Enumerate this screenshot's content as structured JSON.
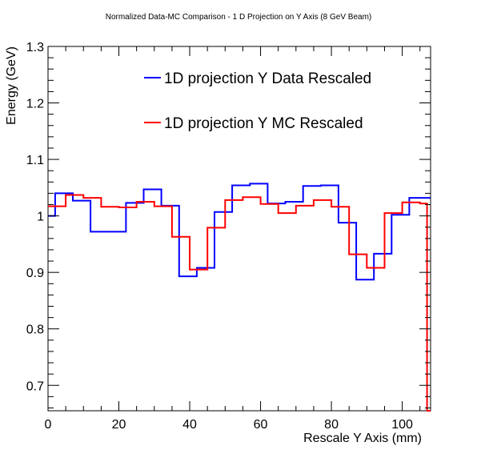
{
  "chart_data": {
    "type": "line",
    "title": "Normalized Data-MC Comparison - 1 D Projection on Y Axis (8 GeV Beam)",
    "xlabel": "Rescale Y Axis (mm)",
    "ylabel": "Energy (GeV)",
    "xlim": [
      0,
      108
    ],
    "ylim": [
      0.655,
      1.3
    ],
    "xticks": [
      0,
      20,
      40,
      60,
      80,
      100
    ],
    "yticks": [
      0.7,
      0.8,
      0.9,
      1,
      1.1,
      1.2,
      1.3
    ],
    "ytick_labels": [
      "0.7",
      "0.8",
      "0.9",
      "1",
      "1.1",
      "1.2",
      "1.3"
    ],
    "step": true,
    "grid": false,
    "legend_position": "top-right",
    "series": [
      {
        "name": "1D projection Y Data Rescaled",
        "color": "#0000ff",
        "x": [
          0,
          2,
          7,
          12,
          22,
          27,
          32,
          37,
          42,
          47,
          52,
          57,
          62,
          67,
          72,
          77,
          82,
          87,
          92,
          97,
          102,
          107
        ],
        "values": [
          1.0,
          1.04,
          1.027,
          0.972,
          1.023,
          1.047,
          1.018,
          0.893,
          0.908,
          1.007,
          1.054,
          1.057,
          1.022,
          1.025,
          1.053,
          1.054,
          0.988,
          0.887,
          0.933,
          1.002,
          1.032,
          1.032
        ]
      },
      {
        "name": "1D projection Y MC Rescaled",
        "color": "#ff0000",
        "x": [
          0,
          5,
          10,
          15,
          20,
          25,
          30,
          35,
          40,
          45,
          50,
          55,
          60,
          65,
          70,
          75,
          80,
          85,
          90,
          95,
          100,
          105,
          107
        ],
        "values": [
          1.017,
          1.037,
          1.032,
          1.016,
          1.015,
          1.025,
          1.017,
          0.963,
          0.905,
          0.979,
          1.028,
          1.033,
          1.021,
          1.005,
          1.018,
          1.028,
          1.016,
          0.932,
          0.908,
          1.005,
          1.024,
          1.022,
          0.655
        ]
      }
    ]
  },
  "colors": {
    "data_series": "#0000ff",
    "mc_series": "#ff0000"
  }
}
